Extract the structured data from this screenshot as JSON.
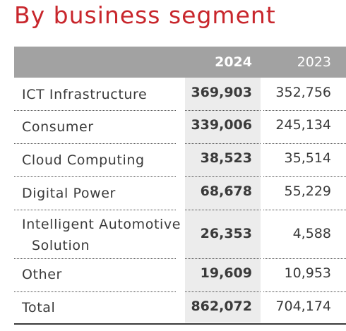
{
  "title": "By business segment",
  "table": {
    "headers": {
      "label": "",
      "year_current": "2024",
      "year_prior": "2023"
    },
    "rows": [
      {
        "label": "ICT Infrastructure",
        "label_line2": "",
        "v2024": "369,903",
        "v2023": "352,756"
      },
      {
        "label": "Consumer",
        "label_line2": "",
        "v2024": "339,006",
        "v2023": "245,134"
      },
      {
        "label": "Cloud Computing",
        "label_line2": "",
        "v2024": "38,523",
        "v2023": "35,514"
      },
      {
        "label": "Digital Power",
        "label_line2": "",
        "v2024": "68,678",
        "v2023": "55,229"
      },
      {
        "label": "Intelligent Automotive",
        "label_line2": "Solution",
        "v2024": "26,353",
        "v2023": "4,588"
      },
      {
        "label": "Other",
        "label_line2": "",
        "v2024": "19,609",
        "v2023": "10,953"
      },
      {
        "label": "Total",
        "label_line2": "",
        "v2024": "862,072",
        "v2023": "704,174"
      }
    ]
  },
  "colors": {
    "title": "#c8262c",
    "header_bg": "#a2a2a2",
    "highlight_col": "#ececec",
    "text": "#3a3a3a"
  }
}
